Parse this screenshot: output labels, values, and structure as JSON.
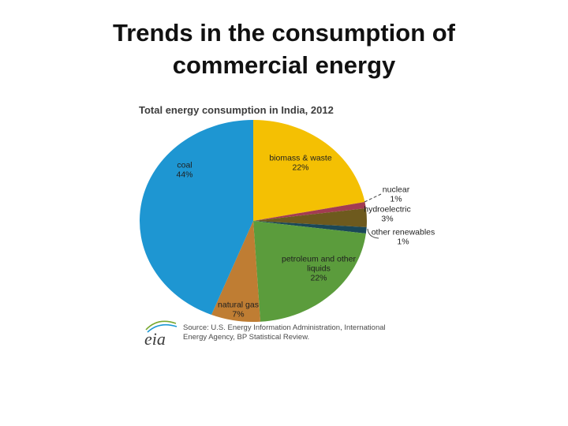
{
  "slide": {
    "title_line1": "Trends in the consumption of",
    "title_line2": "commercial energy"
  },
  "chart": {
    "title": "Total energy consumption in India, 2012",
    "source_line1": "Source: U.S. Energy Information Administration, International",
    "source_line2": "Energy Agency, BP Statistical Review.",
    "logo_text": "eia"
  },
  "chart_data": {
    "type": "pie",
    "title": "Total energy consumption in India, 2012",
    "unit": "percent of total",
    "start_angle_deg": 0,
    "direction": "clockwise",
    "slices": [
      {
        "label": "biomass & waste",
        "value": 22,
        "pct_label": "22%",
        "color": "#F4C003"
      },
      {
        "label": "nuclear",
        "value": 1,
        "pct_label": "1%",
        "color": "#A23C52"
      },
      {
        "label": "hydroelectric",
        "value": 3,
        "pct_label": "3%",
        "color": "#6E5A1E"
      },
      {
        "label": "other renewables",
        "value": 1,
        "pct_label": "1%",
        "color": "#1A4858"
      },
      {
        "label": "petroleum and other liquids",
        "value": 22,
        "pct_label": "22%",
        "color": "#5B9C3C"
      },
      {
        "label": "natural gas",
        "value": 7,
        "pct_label": "7%",
        "color": "#BF7D33"
      },
      {
        "label": "coal",
        "value": 44,
        "pct_label": "44%",
        "color": "#1E96D2"
      }
    ]
  }
}
